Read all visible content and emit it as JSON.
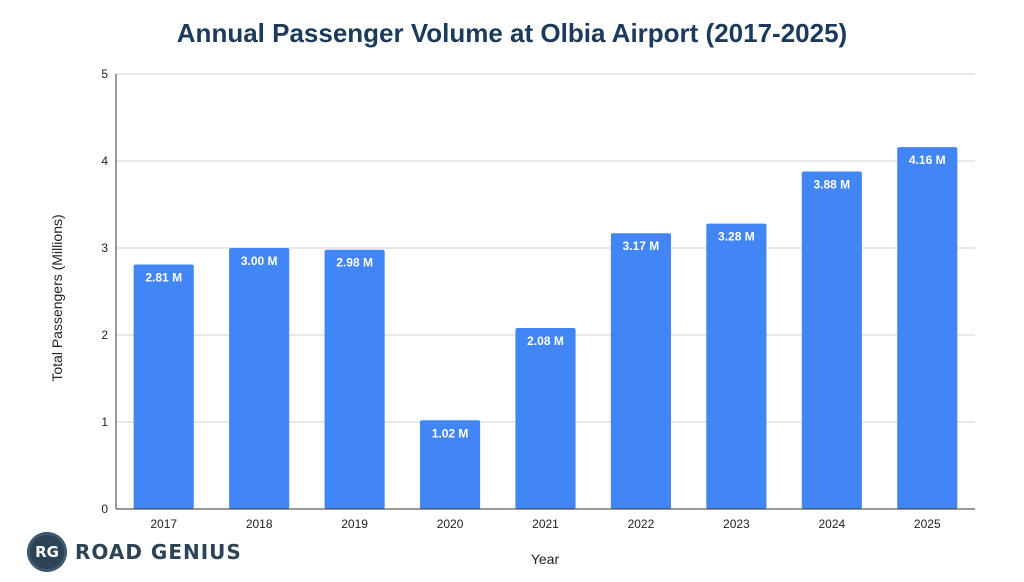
{
  "chart_data": {
    "type": "bar",
    "title": "Annual Passenger Volume at Olbia Airport (2017-2025)",
    "xlabel": "Year",
    "ylabel": "Total Passengers (Millions)",
    "categories": [
      "2017",
      "2018",
      "2019",
      "2020",
      "2021",
      "2022",
      "2023",
      "2024",
      "2025"
    ],
    "values": [
      2.81,
      3.0,
      2.98,
      1.02,
      2.08,
      3.17,
      3.28,
      3.88,
      4.16
    ],
    "data_labels": [
      "2.81 M",
      "3.00 M",
      "2.98 M",
      "1.02 M",
      "2.08 M",
      "3.17 M",
      "3.28 M",
      "3.88 M",
      "4.16 M"
    ],
    "ylim": [
      0,
      5
    ],
    "yticks": [
      "0",
      "1",
      "2",
      "3",
      "4",
      "5"
    ],
    "grid": true,
    "legend": "none",
    "bar_color": "#4285f4"
  },
  "logo": {
    "badge": "RG",
    "text": "ROAD GENIUS"
  }
}
